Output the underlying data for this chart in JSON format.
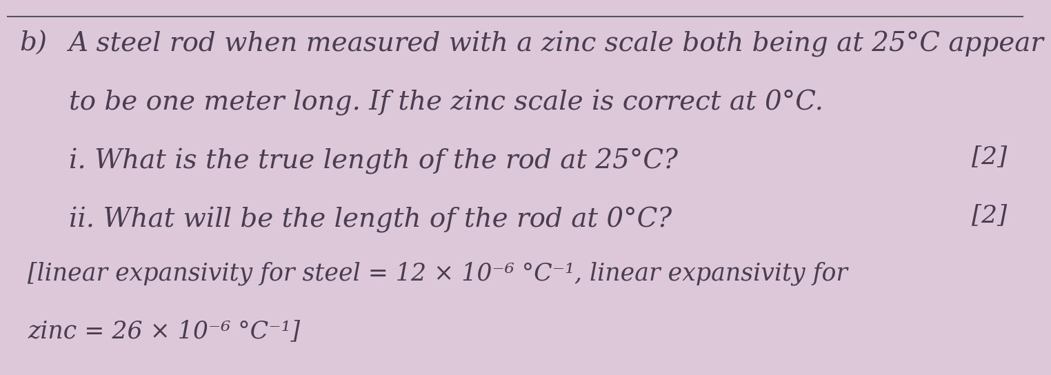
{
  "background_color": "#dcc8d8",
  "label_b": "b)",
  "line1": "A steel rod when measured with a zinc scale both being at 25°C appear",
  "line2": "to be one meter long. If the zinc scale is correct at 0°C.",
  "line3": "i. What is the true length of the rod at 25°C?",
  "line4": "ii. What will be the length of the rod at 0°C?",
  "line5": "[linear expansivity for steel = 12 × 10⁻⁶ °C⁻¹, linear expansivity for",
  "line6": "zinc = 26 × 10⁻⁶ °C⁻¹]",
  "mark1": "[2]",
  "mark2": "[2]",
  "text_color": "#4a3d52",
  "font_size_main": 28,
  "font_size_marks": 26,
  "font_size_small": 25,
  "font_family": "DejaVu Serif"
}
